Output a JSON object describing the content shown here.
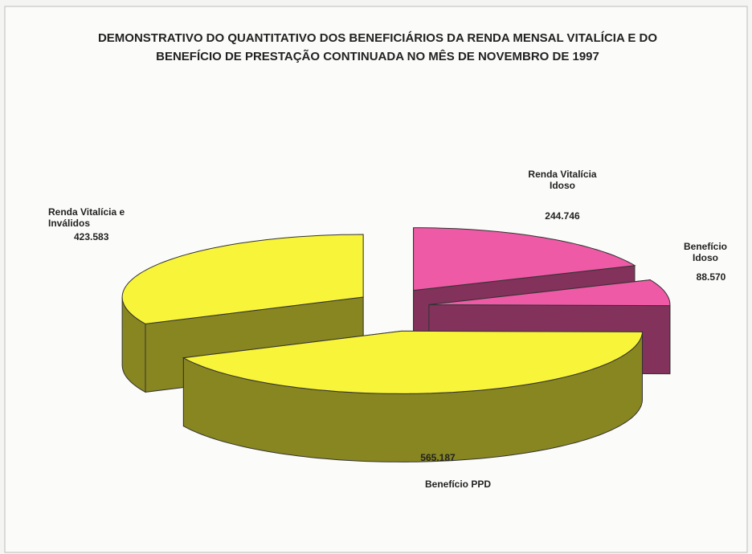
{
  "chart_data": {
    "type": "pie3d",
    "title": "DEMONSTRATIVO DO QUANTITATIVO DOS BENEFICIÁRIOS DA RENDA MENSAL VITALÍCIA E DO BENEFÍCIO DE PRESTAÇÃO CONTINUADA NO MÊS DE NOVEMBRO DE 1997",
    "categories": [
      "Renda Vitalícia Idoso",
      "Benefício Idoso",
      "Benefício PPD",
      "Renda Vitalícia e Inválidos"
    ],
    "values": [
      244746,
      88570,
      565187,
      423583
    ],
    "value_labels": [
      "244.746",
      "88.570",
      "565.187",
      "423.583"
    ],
    "colors": [
      "#ee5aa6",
      "#ee5aa6",
      "#f8f43a",
      "#f8f43a"
    ]
  }
}
